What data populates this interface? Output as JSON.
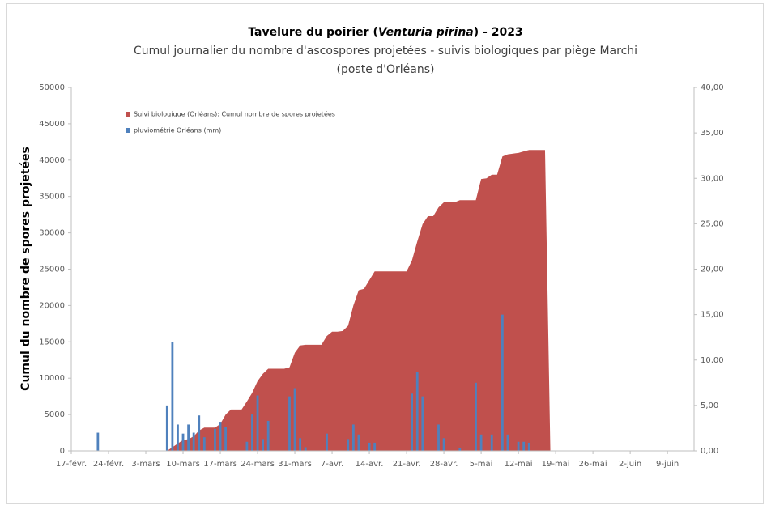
{
  "chart_data": {
    "type": "area-bar",
    "title": [
      "Tavelure du poirier (",
      "Venturia pirina",
      ") - 2023"
    ],
    "subtitle": [
      "Cumul journalier du nombre d'ascospores projetées - suivis biologiques par piège Marchi",
      "(poste d'Orléans)"
    ],
    "ylabel": "Cumul du nombre de spores projetées",
    "categories": [
      "17-févr.",
      null,
      null,
      null,
      null,
      null,
      null,
      "24-févr.",
      null,
      null,
      null,
      null,
      null,
      null,
      "3-mars",
      null,
      null,
      null,
      null,
      null,
      null,
      "10-mars",
      null,
      null,
      null,
      null,
      null,
      null,
      "17-mars",
      null,
      null,
      null,
      null,
      null,
      null,
      "24-mars",
      null,
      null,
      null,
      null,
      null,
      null,
      "31-mars",
      null,
      null,
      null,
      null,
      null,
      null,
      "7-avr.",
      null,
      null,
      null,
      null,
      null,
      null,
      "14-avr.",
      null,
      null,
      null,
      null,
      null,
      null,
      "21-avr.",
      null,
      null,
      null,
      null,
      null,
      null,
      "28-avr.",
      null,
      null,
      null,
      null,
      null,
      null,
      "5-mai",
      null,
      null,
      null,
      null,
      null,
      null,
      "12-mai",
      null,
      null,
      null,
      null,
      null,
      null,
      "19-mai",
      null,
      null,
      null,
      null,
      null,
      null,
      "26-mai",
      null,
      null,
      null,
      null,
      null,
      null,
      "2-juin",
      null,
      null,
      null,
      null,
      null,
      null,
      "9-juin",
      null,
      null,
      null,
      null,
      null
    ],
    "series": [
      {
        "name": "Suivi biologique (Orléans): Cumul nombre de spores projetées",
        "kind": "area",
        "color": "#c0504d",
        "values": [
          null,
          null,
          null,
          null,
          null,
          null,
          null,
          null,
          null,
          null,
          null,
          null,
          null,
          null,
          null,
          null,
          null,
          null,
          0,
          500,
          1000,
          1500,
          1600,
          2000,
          2800,
          3200,
          3200,
          3200,
          3700,
          5000,
          5700,
          5700,
          5700,
          6800,
          8000,
          9600,
          10600,
          11300,
          11300,
          11300,
          11300,
          11500,
          13500,
          14500,
          14600,
          14600,
          14600,
          14600,
          15800,
          16400,
          16400,
          16500,
          17200,
          20000,
          22100,
          22300,
          23500,
          24700,
          24700,
          24700,
          24700,
          24700,
          24700,
          24700,
          26200,
          28800,
          31200,
          32300,
          32300,
          33500,
          34200,
          34200,
          34200,
          34500,
          34500,
          34500,
          34500,
          37400,
          37500,
          38000,
          38000,
          40500,
          40800,
          40900,
          41000,
          41200,
          41400,
          41400,
          41400,
          41400,
          0,
          null,
          null,
          null,
          null,
          null,
          null,
          null,
          null,
          null,
          null,
          null,
          null,
          null,
          null,
          null,
          null,
          null,
          null,
          null,
          null,
          null,
          null,
          null,
          null,
          null,
          null,
          null
        ]
      },
      {
        "name": "pluviométrie Orléans (mm)",
        "kind": "bar",
        "axis": "y2",
        "color": "#4f81bd",
        "values": [
          null,
          null,
          null,
          null,
          null,
          2.0,
          null,
          null,
          null,
          null,
          null,
          null,
          null,
          null,
          null,
          null,
          null,
          null,
          5.0,
          12.0,
          2.9,
          1.9,
          2.9,
          2.0,
          3.9,
          1.5,
          null,
          2.4,
          3.2,
          2.6,
          null,
          null,
          null,
          1.0,
          4.0,
          6.1,
          1.3,
          3.3,
          null,
          null,
          null,
          6.0,
          6.9,
          1.4,
          0.4,
          null,
          null,
          null,
          1.9,
          null,
          null,
          null,
          1.3,
          2.9,
          1.8,
          null,
          0.9,
          0.9,
          null,
          null,
          null,
          null,
          null,
          null,
          6.3,
          8.7,
          6.0,
          null,
          null,
          2.9,
          1.4,
          null,
          null,
          0.3,
          null,
          null,
          7.5,
          1.8,
          null,
          1.8,
          null,
          15.0,
          1.8,
          null,
          1.0,
          1.0,
          0.9,
          null,
          null,
          null,
          null,
          null,
          null,
          null,
          null,
          null,
          null,
          null,
          null,
          null,
          null,
          null,
          null,
          null,
          null,
          null,
          null,
          null,
          null,
          null,
          null,
          null,
          null,
          null,
          null,
          null,
          null,
          null
        ]
      }
    ],
    "ylim": [
      0,
      50000
    ],
    "yticks": [
      0,
      5000,
      10000,
      15000,
      20000,
      25000,
      30000,
      35000,
      40000,
      45000,
      50000
    ],
    "y2lim": [
      0,
      40
    ],
    "y2ticks": [
      {
        "value": 0,
        "label": "0,00"
      },
      {
        "value": 5,
        "label": "5,00"
      },
      {
        "value": 10,
        "label": "10,00"
      },
      {
        "value": 15,
        "label": "15,00"
      },
      {
        "value": 20,
        "label": "20,00"
      },
      {
        "value": 25,
        "label": "25,00"
      },
      {
        "value": 30,
        "label": "30,00"
      },
      {
        "value": 35,
        "label": "35,00"
      },
      {
        "value": 40,
        "label": "40,00"
      }
    ],
    "legend": "top-left",
    "grid": false
  }
}
